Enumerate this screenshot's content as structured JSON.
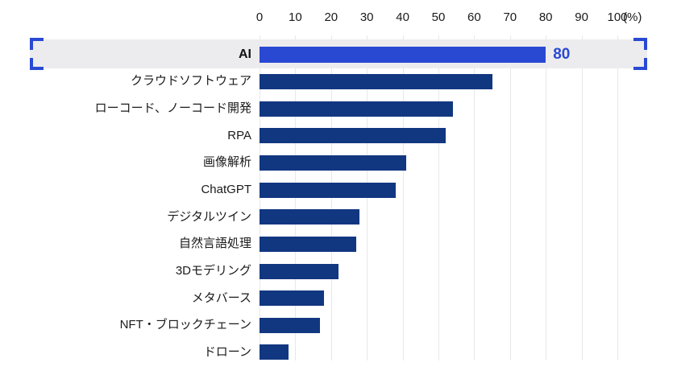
{
  "chart_data": {
    "type": "bar",
    "orientation": "horizontal",
    "title": "",
    "xlabel": "",
    "ylabel": "",
    "unit_label": "(%)",
    "xlim": [
      0,
      100
    ],
    "ticks": [
      0,
      10,
      20,
      30,
      40,
      50,
      60,
      70,
      80,
      90,
      100
    ],
    "grid": true,
    "categories": [
      "AI",
      "クラウドソフトウェア",
      "ローコード、ノーコード開発",
      "RPA",
      "画像解析",
      "ChatGPT",
      "デジタルツイン",
      "自然言語処理",
      "3Dモデリング",
      "メタバース",
      "NFT・ブロックチェーン",
      "ドローン"
    ],
    "values": [
      80,
      65,
      54,
      52,
      41,
      38,
      28,
      27,
      22,
      18,
      17,
      8
    ],
    "highlighted_category": "AI",
    "highlighted_value_label": "80",
    "colors": {
      "bar": "#123781",
      "highlight_bar": "#2a49d3",
      "highlight_band": "#ececee",
      "bracket": "#2a49d3",
      "grid": "#e8e8ea",
      "text": "#1a1a1c",
      "value_label": "#2a49d3"
    }
  }
}
